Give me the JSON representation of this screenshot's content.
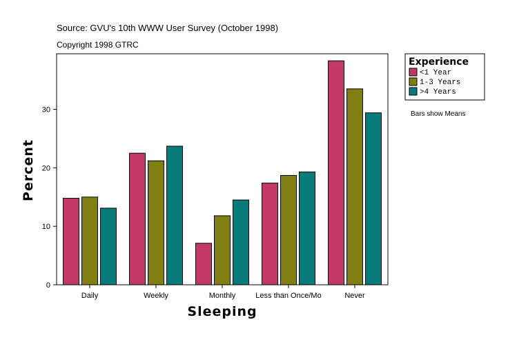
{
  "chart_data": {
    "type": "bar",
    "source_text": "Source: GVU's 10th WWW User Survey (October 1998)",
    "copyright_text": "Copyright 1998 GTRC",
    "xlabel": "Sleeping",
    "ylabel": "Percent",
    "categories": [
      "Daily",
      "Weekly",
      "Monthly",
      "Less than Once/Mo",
      "Never"
    ],
    "series": [
      {
        "name": "<1 Year",
        "color": "#c0396a",
        "values": [
          14.8,
          22.5,
          7.1,
          17.4,
          38.3
        ]
      },
      {
        "name": "1-3 Years",
        "color": "#808010",
        "values": [
          15.0,
          21.2,
          11.8,
          18.7,
          33.5
        ]
      },
      {
        "name": ">4 Years",
        "color": "#0a7b7b",
        "values": [
          13.1,
          23.7,
          14.5,
          19.3,
          29.4
        ]
      }
    ],
    "ylim": [
      0,
      39.5
    ],
    "yticks": [
      0,
      10,
      20,
      30
    ],
    "legend_title": "Experience",
    "legend_position": "right-top",
    "note": "Bars show Means",
    "grid": false
  }
}
